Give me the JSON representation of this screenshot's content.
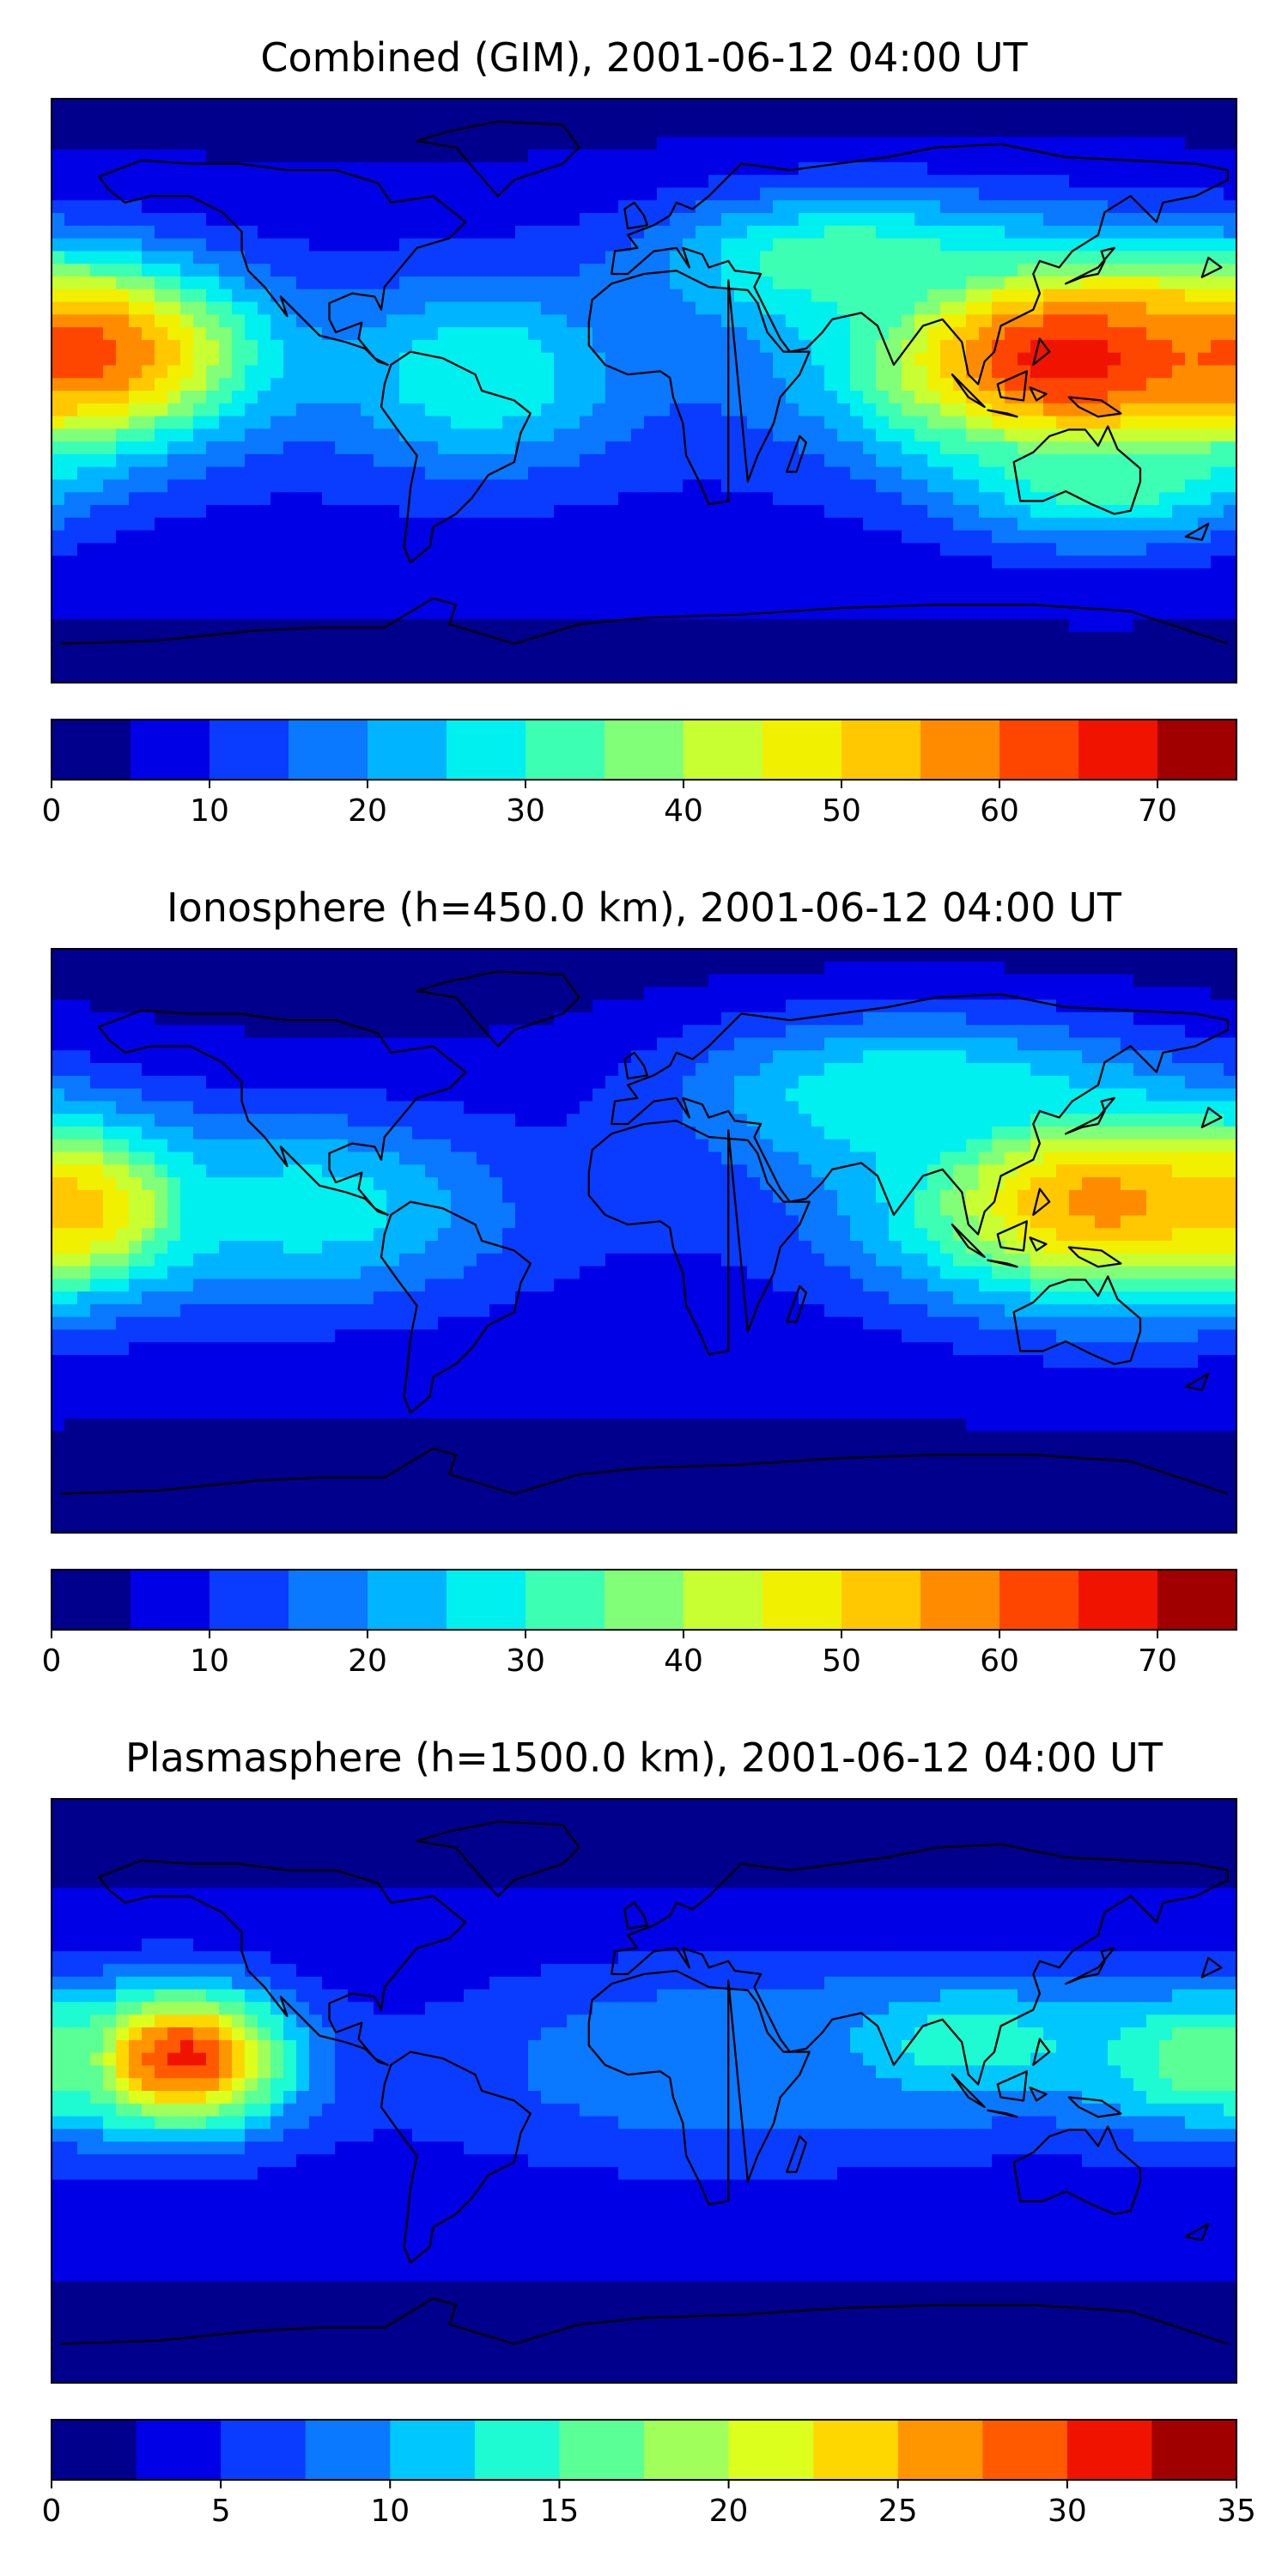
{
  "chart_data": [
    {
      "type": "heatmap",
      "title": "Combined (GIM), 2001-06-12 04:00 UT",
      "colorbar": {
        "vmin": 0,
        "vmax": 75,
        "step": 5,
        "ticks": [
          0,
          10,
          20,
          30,
          40,
          50,
          60,
          70
        ],
        "tick_labels": [
          "0",
          "10",
          "20",
          "30",
          "40",
          "50",
          "60",
          "70"
        ],
        "colors": [
          "#00008c",
          "#0000e6",
          "#0a3cff",
          "#0a78ff",
          "#00b4ff",
          "#00f0f0",
          "#3cffb4",
          "#82ff78",
          "#c8ff32",
          "#f0f000",
          "#ffc800",
          "#ff8c00",
          "#ff4600",
          "#f01400",
          "#a00000"
        ]
      },
      "hotspots": [
        {
          "lon": 130,
          "lat": 10,
          "value": 68,
          "spread_lon": 45,
          "spread_lat": 22
        },
        {
          "lon": -170,
          "lat": 12,
          "value": 62,
          "spread_lon": 35,
          "spread_lat": 18
        },
        {
          "lon": -50,
          "lat": 5,
          "value": 30,
          "spread_lon": 30,
          "spread_lat": 20
        },
        {
          "lon": 140,
          "lat": -25,
          "value": 34,
          "spread_lon": 30,
          "spread_lat": 15
        },
        {
          "lon": 60,
          "lat": 40,
          "value": 34,
          "spread_lon": 40,
          "spread_lat": 15
        }
      ],
      "background_value": 12
    },
    {
      "type": "heatmap",
      "title": "Ionosphere  (h=450.0 km), 2001-06-12 04:00 UT",
      "colorbar": {
        "vmin": 0,
        "vmax": 75,
        "step": 5,
        "ticks": [
          0,
          10,
          20,
          30,
          40,
          50,
          60,
          70
        ],
        "tick_labels": [
          "0",
          "10",
          "20",
          "30",
          "40",
          "50",
          "60",
          "70"
        ],
        "colors": [
          "#00008c",
          "#0000e6",
          "#0a3cff",
          "#0a78ff",
          "#00b4ff",
          "#00f0f0",
          "#3cffb4",
          "#82ff78",
          "#c8ff32",
          "#f0f000",
          "#ffc800",
          "#ff8c00",
          "#ff4600",
          "#f01400",
          "#a00000"
        ]
      },
      "hotspots": [
        {
          "lon": 140,
          "lat": 12,
          "value": 57,
          "spread_lon": 45,
          "spread_lat": 22
        },
        {
          "lon": -175,
          "lat": 10,
          "value": 52,
          "spread_lon": 25,
          "spread_lat": 15
        },
        {
          "lon": -100,
          "lat": 10,
          "value": 28,
          "spread_lon": 40,
          "spread_lat": 20
        },
        {
          "lon": 80,
          "lat": 45,
          "value": 30,
          "spread_lon": 50,
          "spread_lat": 18
        }
      ],
      "background_value": 9
    },
    {
      "type": "heatmap",
      "title": "Plasmasphere (h=1500.0 km), 2001-06-12 04:00 UT",
      "colorbar": {
        "vmin": 0,
        "vmax": 35,
        "step": 2.5,
        "ticks": [
          0,
          5,
          10,
          15,
          20,
          25,
          30,
          35
        ],
        "tick_labels": [
          "0",
          "5",
          "10",
          "15",
          "20",
          "25",
          "30",
          "35"
        ],
        "colors": [
          "#00008c",
          "#0000e6",
          "#0a3cff",
          "#0a78ff",
          "#00c8ff",
          "#1efad2",
          "#5aff96",
          "#a0ff5a",
          "#dcff1e",
          "#ffd700",
          "#ff9600",
          "#ff5a00",
          "#f01400",
          "#a00000"
        ]
      },
      "hotspots": [
        {
          "lon": -140,
          "lat": 10,
          "value": 31,
          "spread_lon": 22,
          "spread_lat": 15
        },
        {
          "lon": 170,
          "lat": 10,
          "value": 17,
          "spread_lon": 25,
          "spread_lat": 15
        },
        {
          "lon": 100,
          "lat": 15,
          "value": 14,
          "spread_lon": 35,
          "spread_lat": 15
        },
        {
          "lon": 20,
          "lat": 10,
          "value": 10,
          "spread_lon": 50,
          "spread_lat": 20
        }
      ],
      "background_value": 5
    }
  ]
}
